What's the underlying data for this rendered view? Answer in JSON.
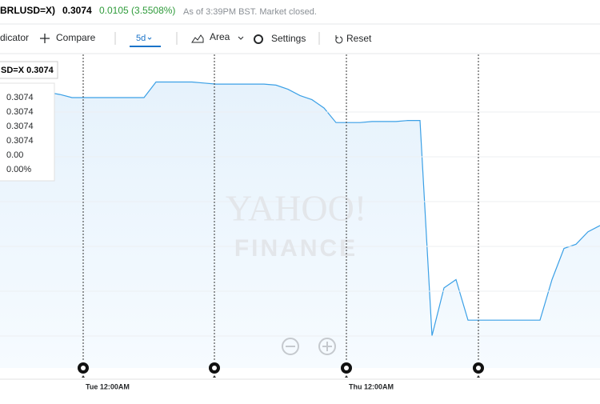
{
  "header": {
    "symbol": "BRLUSD=X)",
    "price": "0.3074",
    "change": "0.0105 (3.5508%)",
    "status": "As of 3:39PM BST. Market closed."
  },
  "toolbar": {
    "indicator": "dicator",
    "compare": "Compare",
    "range": "5d",
    "chart_type": "Area",
    "settings": "Settings",
    "reset": "Reset"
  },
  "tooltip": {
    "title": "SD=X 0.3074",
    "rows": [
      "0.3074",
      "0.3074",
      "0.3074",
      "0.3074",
      "0.00",
      "0.00%"
    ]
  },
  "watermark": {
    "line1": "YAHOO!",
    "line2": "FINANCE"
  },
  "chart_data": {
    "type": "area",
    "x_labels": [
      "Tue 12:00AM",
      "Thu 12:00AM"
    ],
    "ylim": [
      0.2937,
      0.3237
    ],
    "series": [
      {
        "color": "#3ba0e6",
        "values": [
          0.3206,
          0.3202,
          0.3205,
          0.3206,
          0.3202,
          0.32,
          0.3197,
          0.3197,
          0.3197,
          0.3197,
          0.3197,
          0.3197,
          0.3197,
          0.3212,
          0.3212,
          0.3212,
          0.3212,
          0.3211,
          0.321,
          0.321,
          0.321,
          0.321,
          0.321,
          0.3209,
          0.3205,
          0.3199,
          0.3195,
          0.3187,
          0.3173,
          0.3173,
          0.3173,
          0.3174,
          0.3174,
          0.3174,
          0.3175,
          0.3175,
          0.2968,
          0.3014,
          0.3022,
          0.2983,
          0.2983,
          0.2983,
          0.2983,
          0.2983,
          0.2983,
          0.2983,
          0.3022,
          0.3052,
          0.3056,
          0.3068,
          0.3074
        ]
      }
    ]
  }
}
